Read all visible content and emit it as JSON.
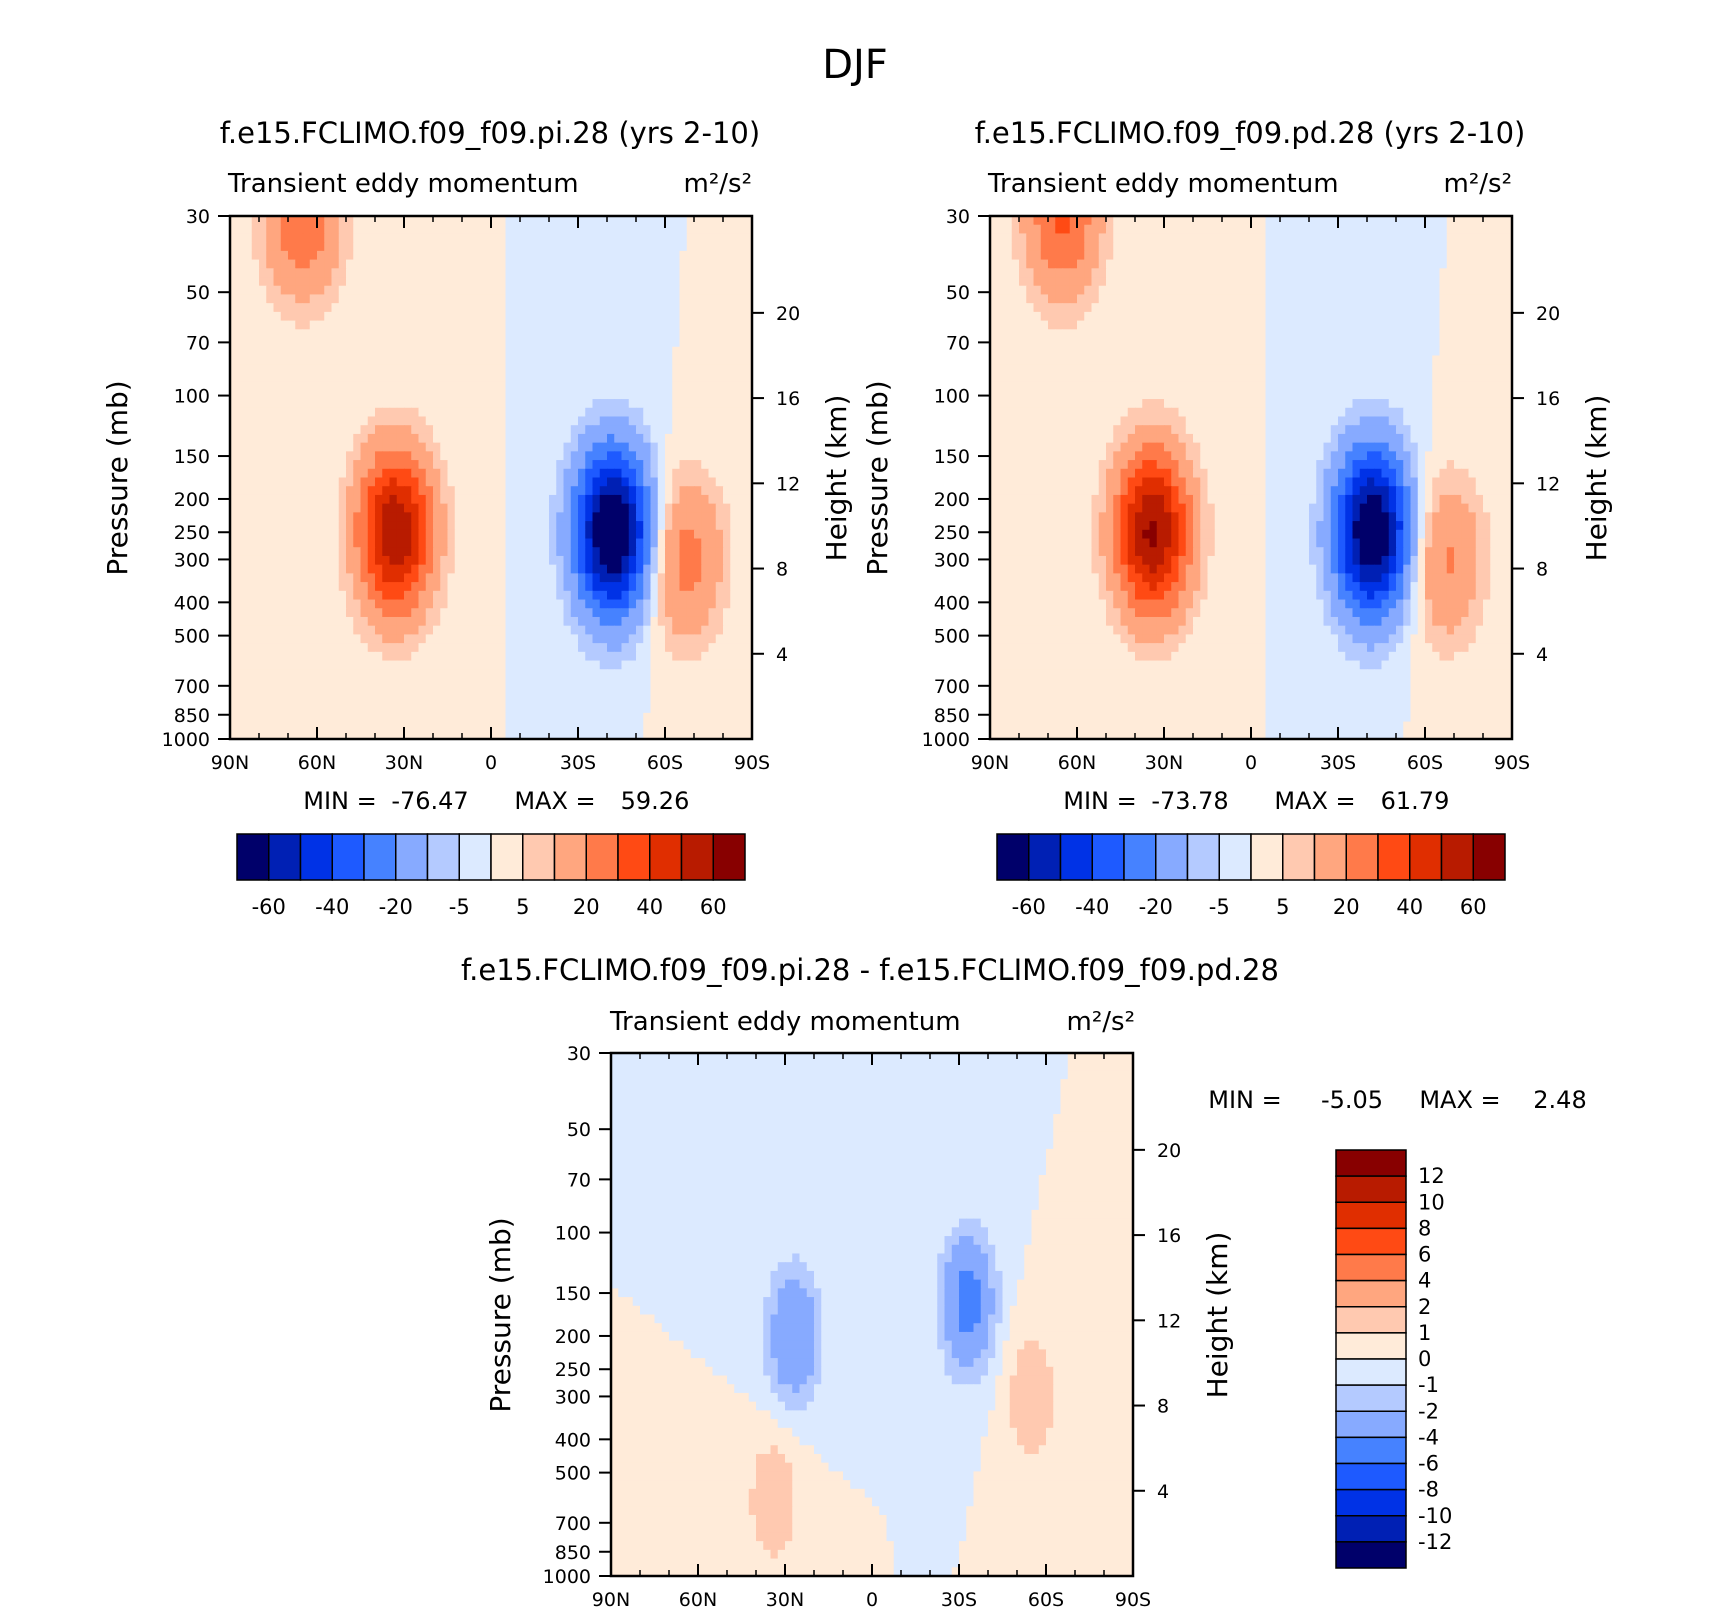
{
  "figure": {
    "title": "DJF"
  },
  "chart_data": [
    {
      "type": "heatmap",
      "title": "f.e15.FCLIMO.f09_f09.pi.28 (yrs 2-10)",
      "subtitle_left": "Transient eddy momentum",
      "subtitle_right": "m²/s²",
      "ylabel": "Pressure (mb)",
      "ylabel_right": "Height (km)",
      "x_ticklabels": [
        "90N",
        "60N",
        "30N",
        "0",
        "30S",
        "60S",
        "90S"
      ],
      "x_values": [
        90,
        60,
        30,
        0,
        -30,
        -60,
        -90
      ],
      "y_ticklabels": [
        "30",
        "50",
        "70",
        "100",
        "150",
        "200",
        "250",
        "300",
        "400",
        "500",
        "700",
        "850",
        "1000"
      ],
      "y_values": [
        30,
        50,
        70,
        100,
        150,
        200,
        250,
        300,
        400,
        500,
        700,
        850,
        1000
      ],
      "y_scale": "log",
      "ylim": [
        1000,
        30
      ],
      "height_ticklabels": [
        "4",
        "8",
        "12",
        "16",
        "20"
      ],
      "stats": {
        "min_label": "MIN =",
        "min": "-76.47",
        "max_label": "MAX =",
        "max": "59.26"
      },
      "colorbar": {
        "orientation": "horizontal",
        "labels": [
          "-60",
          "-40",
          "-20",
          "-5",
          "5",
          "20",
          "40",
          "60"
        ],
        "levels": [
          -70,
          -60,
          -50,
          -40,
          -30,
          -20,
          -10,
          -5,
          0,
          5,
          10,
          20,
          30,
          40,
          50,
          60,
          70
        ]
      },
      "features": [
        {
          "lat": 65,
          "p": 30,
          "value": 30
        },
        {
          "lat": 33,
          "p": 250,
          "value": 59
        },
        {
          "lat": -42,
          "p": 250,
          "value": -76
        },
        {
          "lat": -67,
          "p": 300,
          "value": 25
        }
      ]
    },
    {
      "type": "heatmap",
      "title": "f.e15.FCLIMO.f09_f09.pd.28 (yrs 2-10)",
      "subtitle_left": "Transient eddy momentum",
      "subtitle_right": "m²/s²",
      "ylabel": "Pressure (mb)",
      "ylabel_right": "Height (km)",
      "x_ticklabels": [
        "90N",
        "60N",
        "30N",
        "0",
        "30S",
        "60S",
        "90S"
      ],
      "x_values": [
        90,
        60,
        30,
        0,
        -30,
        -60,
        -90
      ],
      "y_ticklabels": [
        "30",
        "50",
        "70",
        "100",
        "150",
        "200",
        "250",
        "300",
        "400",
        "500",
        "700",
        "850",
        "1000"
      ],
      "y_values": [
        30,
        50,
        70,
        100,
        150,
        200,
        250,
        300,
        400,
        500,
        700,
        850,
        1000
      ],
      "y_scale": "log",
      "ylim": [
        1000,
        30
      ],
      "height_ticklabels": [
        "4",
        "8",
        "12",
        "16",
        "20"
      ],
      "stats": {
        "min_label": "MIN =",
        "min": "-73.78",
        "max_label": "MAX =",
        "max": "61.79"
      },
      "colorbar": {
        "orientation": "horizontal",
        "labels": [
          "-60",
          "-40",
          "-20",
          "-5",
          "5",
          "20",
          "40",
          "60"
        ],
        "levels": [
          -70,
          -60,
          -50,
          -40,
          -30,
          -20,
          -10,
          -5,
          0,
          5,
          10,
          20,
          30,
          40,
          50,
          60,
          70
        ]
      },
      "features": [
        {
          "lat": 65,
          "p": 30,
          "value": 32
        },
        {
          "lat": 34,
          "p": 250,
          "value": 62
        },
        {
          "lat": -42,
          "p": 250,
          "value": -74
        },
        {
          "lat": -67,
          "p": 300,
          "value": 22
        }
      ]
    },
    {
      "type": "heatmap",
      "title": "f.e15.FCLIMO.f09_f09.pi.28 - f.e15.FCLIMO.f09_f09.pd.28",
      "subtitle_left": "Transient eddy momentum",
      "subtitle_right": "m²/s²",
      "ylabel": "Pressure (mb)",
      "ylabel_right": "Height (km)",
      "x_ticklabels": [
        "90N",
        "60N",
        "30N",
        "0",
        "30S",
        "60S",
        "90S"
      ],
      "x_values": [
        90,
        60,
        30,
        0,
        -30,
        -60,
        -90
      ],
      "y_ticklabels": [
        "30",
        "50",
        "70",
        "100",
        "150",
        "200",
        "250",
        "300",
        "400",
        "500",
        "700",
        "850",
        "1000"
      ],
      "y_values": [
        30,
        50,
        70,
        100,
        150,
        200,
        250,
        300,
        400,
        500,
        700,
        850,
        1000
      ],
      "y_scale": "log",
      "ylim": [
        1000,
        30
      ],
      "height_ticklabels": [
        "4",
        "8",
        "12",
        "16",
        "20"
      ],
      "stats": {
        "min_label": "MIN =",
        "min": "-5.05",
        "max_label": "MAX =",
        "max": "2.48"
      },
      "colorbar": {
        "orientation": "vertical",
        "labels": [
          "12",
          "10",
          "8",
          "6",
          "4",
          "2",
          "1",
          "0",
          "-1",
          "-2",
          "-4",
          "-6",
          "-8",
          "-10",
          "-12"
        ],
        "levels": [
          -14,
          -12,
          -10,
          -8,
          -6,
          -4,
          -2,
          -1,
          0,
          1,
          2,
          4,
          6,
          8,
          10,
          12,
          14
        ]
      },
      "features": [
        {
          "lat": 27,
          "p": 200,
          "value": -4
        },
        {
          "lat": -33,
          "p": 160,
          "value": -5
        },
        {
          "lat": 34,
          "p": 600,
          "value": 2
        },
        {
          "lat": -55,
          "p": 300,
          "value": 2
        }
      ]
    }
  ],
  "colors": {
    "diverging": [
      "#00006a",
      "#0020b4",
      "#0032e6",
      "#1e5aff",
      "#4682ff",
      "#87aaff",
      "#b4caff",
      "#dceaff",
      "#ffebd9",
      "#ffc9b0",
      "#ffa67f",
      "#ff7a4a",
      "#ff4a14",
      "#e02e00",
      "#b81b00",
      "#880000"
    ]
  }
}
